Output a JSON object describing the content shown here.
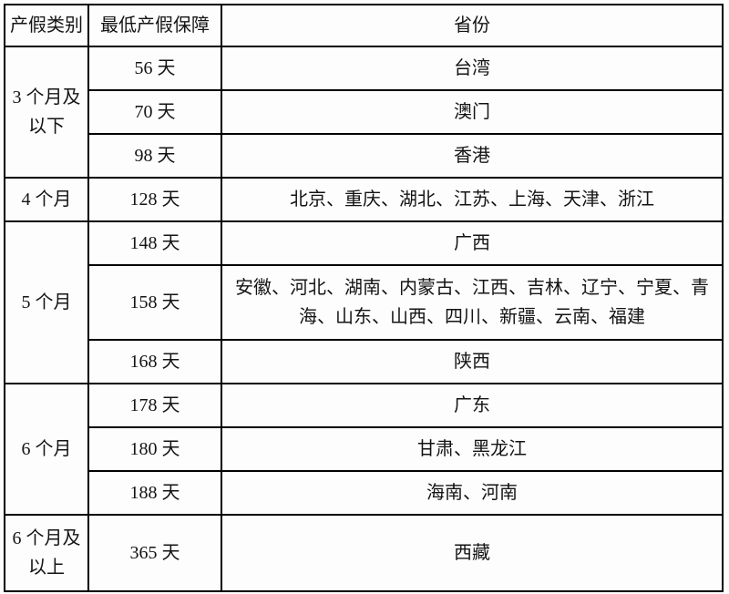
{
  "page": {
    "background_color": "#fdfdfd",
    "border_color": "#000000",
    "text_color": "#141414"
  },
  "table": {
    "headers": {
      "category": "产假类别",
      "min_leave": "最低产假保障",
      "province": "省份"
    },
    "groups": [
      {
        "category": "3 个月及以下",
        "rows": [
          {
            "days": "56 天",
            "provinces": "台湾"
          },
          {
            "days": "70 天",
            "provinces": "澳门"
          },
          {
            "days": "98 天",
            "provinces": "香港"
          }
        ]
      },
      {
        "category": "4 个月",
        "rows": [
          {
            "days": "128 天",
            "provinces": "北京、重庆、湖北、江苏、上海、天津、浙江"
          }
        ]
      },
      {
        "category": "5 个月",
        "rows": [
          {
            "days": "148 天",
            "provinces": "广西"
          },
          {
            "days": "158 天",
            "provinces": "安徽、河北、湖南、内蒙古、江西、吉林、辽宁、宁夏、青海、山东、山西、四川、新疆、云南、福建"
          },
          {
            "days": "168 天",
            "provinces": "陕西"
          }
        ]
      },
      {
        "category": "6 个月",
        "rows": [
          {
            "days": "178 天",
            "provinces": "广东"
          },
          {
            "days": "180 天",
            "provinces": "甘肃、黑龙江"
          },
          {
            "days": "188 天",
            "provinces": "海南、河南"
          }
        ]
      },
      {
        "category": "6 个月及以上",
        "rows": [
          {
            "days": "365 天",
            "provinces": "西藏"
          }
        ]
      }
    ]
  }
}
